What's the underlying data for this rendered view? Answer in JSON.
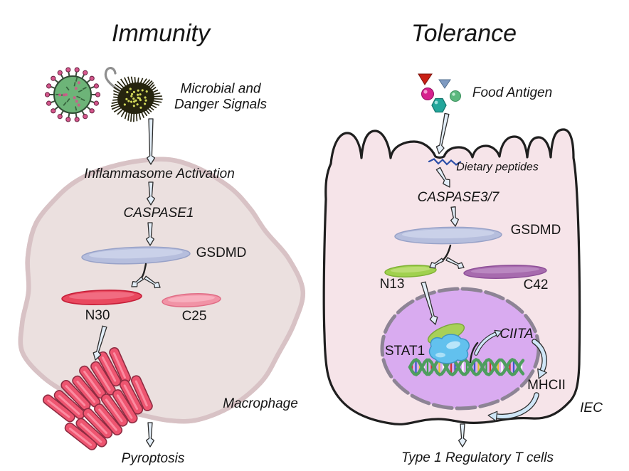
{
  "palette": {
    "text": "#151515",
    "macrophage_fill": "#ebe0df",
    "macrophage_edge": "#d8c2c5",
    "macrophage_highlight": "#f4eded",
    "iec_fill": "#f6e4e9",
    "iec_edge_inner": "#eecbd6",
    "iec_outline": "#1f1f1f",
    "nucleus_fill": "#d9abf0",
    "nucleus_stroke": "#8d8495",
    "gsdmd_fill": "#b6bedd",
    "gsdmd_hi": "#ccd3ea",
    "gsdmd_edge": "#98a2c8",
    "n30_fill": "#e9485e",
    "n30_edge": "#c61f39",
    "c25_fill": "#f193a6",
    "c25_edge": "#e06c85",
    "n13_fill": "#a0d14e",
    "n13_edge": "#7fb135",
    "c42_fill": "#a76bae",
    "c42_edge": "#8e4f98",
    "stat1_green": "#a8d058",
    "stat1_green_edge": "#7ca83d",
    "stat1_blue": "#62c1ee",
    "stat1_blue_edge": "#3e94c4",
    "dna_strand": "#4e9d5f",
    "arrow_fill": "#e3eef8",
    "arrow_stroke": "#2c2c2c",
    "branch_fill": "#cfe6f7",
    "pore_fill": "#ee5570",
    "pore_edge": "#8f2c42",
    "pore_highlight": "#ff9fb2",
    "virus_green": "#6db478",
    "virus_edge": "#2f4a33",
    "virus_spike": "#d4568c",
    "bacterium_dark": "#26240f",
    "bacterium_speck": "#dbe35e",
    "flagellum": "#8f8f8f",
    "peptide_blue": "#2b4ea8",
    "antigen_red": "#c92015",
    "antigen_blue": "#7e9ac1",
    "antigen_magenta": "#d6218e",
    "antigen_green": "#5cb87e",
    "antigen_teal": "#23a69b"
  },
  "left_panel": {
    "title": "Immunity",
    "signal_caption": "Microbial and\nDanger Signals",
    "step_inflammasome": "Inflammasome Activation",
    "step_caspase": "CASPASE1",
    "gsdmd": "GSDMD",
    "n_fragment": "N30",
    "c_fragment": "C25",
    "cell": "Macrophage",
    "outcome": "Pyroptosis"
  },
  "right_panel": {
    "title": "Tolerance",
    "signal_caption": "Food Antigen",
    "peptides": "Dietary peptides",
    "step_caspase": "CASPASE3/7",
    "gsdmd": "GSDMD",
    "n_fragment": "N13",
    "c_fragment": "C42",
    "stat1": "STAT1",
    "ciita": "CIITA",
    "mhcii": "MHCII",
    "cell": "IEC",
    "outcome": "Type 1 Regulatory T cells"
  }
}
